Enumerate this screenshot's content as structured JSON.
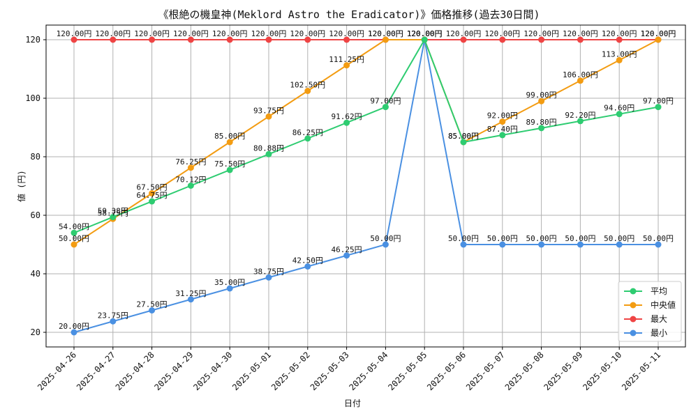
{
  "chart_data": {
    "type": "line",
    "title": "《根絶の機皇神(Meklord Astro the Eradicator)》価格推移(過去30日間)",
    "xlabel": "日付",
    "ylabel": "値 (円)",
    "categories": [
      "2025-04-26",
      "2025-04-27",
      "2025-04-28",
      "2025-04-29",
      "2025-04-30",
      "2025-05-01",
      "2025-05-02",
      "2025-05-03",
      "2025-05-04",
      "2025-05-05",
      "2025-05-06",
      "2025-05-07",
      "2025-05-08",
      "2025-05-09",
      "2025-05-10",
      "2025-05-11"
    ],
    "ylim": [
      15,
      125
    ],
    "yticks": [
      20,
      40,
      60,
      80,
      100,
      120
    ],
    "grid": true,
    "legend_position": "bottom-right",
    "series": [
      {
        "name": "平均",
        "color": "#2ecc71",
        "values": [
          54.0,
          59.38,
          64.75,
          70.12,
          75.5,
          80.88,
          86.25,
          91.62,
          97.0,
          120.0,
          85.0,
          87.4,
          89.8,
          92.2,
          94.6,
          97.0
        ],
        "labels": [
          "54.00円",
          "59.38円",
          "64.75円",
          "70.12円",
          "75.50円",
          "80.88円",
          "86.25円",
          "91.62円",
          "97.00円",
          "120.00円",
          "85.00円",
          "87.40円",
          "89.80円",
          "92.20円",
          "94.60円",
          "97.00円"
        ]
      },
      {
        "name": "中央値",
        "color": "#f39c12",
        "values": [
          50.0,
          58.75,
          67.5,
          76.25,
          85.0,
          93.75,
          102.5,
          111.25,
          120.0,
          120.0,
          85.0,
          92.0,
          99.0,
          106.0,
          113.0,
          120.0
        ],
        "labels": [
          "50.00円",
          "58.75円",
          "67.50円",
          "76.25円",
          "85.00円",
          "93.75円",
          "102.50円",
          "111.25円",
          "120.00円",
          "120.00円",
          "85.00円",
          "92.00円",
          "99.00円",
          "106.00円",
          "113.00円",
          "120.00円"
        ]
      },
      {
        "name": "最大",
        "color": "#ef4444",
        "values": [
          120,
          120,
          120,
          120,
          120,
          120,
          120,
          120,
          120,
          120,
          120,
          120,
          120,
          120,
          120,
          120
        ],
        "labels": [
          "120.00円",
          "120.00円",
          "120.00円",
          "120.00円",
          "120.00円",
          "120.00円",
          "120.00円",
          "120.00円",
          "120.00円",
          "120.00円",
          "120.00円",
          "120.00円",
          "120.00円",
          "120.00円",
          "120.00円",
          "120.00円"
        ]
      },
      {
        "name": "最小",
        "color": "#4a90e2",
        "values": [
          20.0,
          23.75,
          27.5,
          31.25,
          35.0,
          38.75,
          42.5,
          46.25,
          50.0,
          120.0,
          50.0,
          50.0,
          50.0,
          50.0,
          50.0,
          50.0
        ],
        "labels": [
          "20.00円",
          "23.75円",
          "27.50円",
          "31.25円",
          "35.00円",
          "38.75円",
          "42.50円",
          "46.25円",
          "50.00円",
          "120.00円",
          "50.00円",
          "50.00円",
          "50.00円",
          "50.00円",
          "50.00円",
          "50.00円"
        ]
      }
    ]
  }
}
